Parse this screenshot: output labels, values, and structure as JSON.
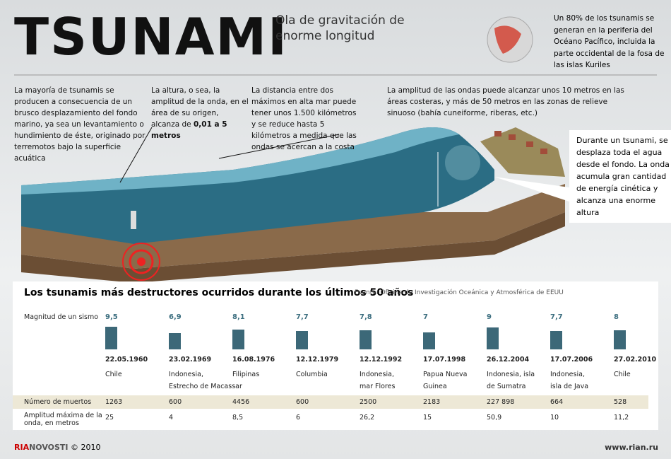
{
  "header": {
    "title": "TSUNAMI",
    "subtitle": "Ola de gravitación de enorme longitud",
    "fact": "Un 80% de los tsunamis se generan en la periferia del Océano Pacífico, incluida la parte occidental de la fosa de las islas Kuriles"
  },
  "notes": {
    "origin": "La mayoría de tsunamis se producen a consecuencia de un brusco desplazamiento del fondo marino, ya sea un levantamiento o hundimiento de éste, originado por terremotos bajo la superficie acuática",
    "height": {
      "text": "La altura, o sea, la amplitud de la onda, en el área de su origen, alcanza de",
      "bold": "0,01 a 5 metros"
    },
    "distance": "La distancia entre dos máximos en alta mar puede tener unos 1.500 kilómetros y se reduce hasta 5 kilómetros a medida que las ondas se acercan a la costa",
    "amplitude": "La amplitud de las ondas puede alcanzar unos 10 metros en las áreas costeras, y más de 50 metros en las zonas de relieve sinuoso (bahía cuneiforme, riberas, etc.)",
    "coast": "Durante un tsunami, se desplaza toda el agua desde el fondo. La onda acumula gran cantidad de energía cinética y alcanza una enorme altura"
  },
  "table": {
    "title": "Los tsunamis más destructores ocurridos durante los últimos 50 años",
    "source": "Fuente: Oficina de Investigación Oceánica y Atmosférica de EEUU",
    "row_labels": {
      "magnitude": "Magnitud de un sismo",
      "deaths": "Número de muertos",
      "amplitude": "Amplitud máxima de la onda, en metros"
    },
    "events": [
      {
        "magnitude": {
          "value": 9.5,
          "label": "9,5"
        },
        "date": "22.05.1960",
        "place": [
          "Chile"
        ],
        "deaths": "1263",
        "amplitude": "25"
      },
      {
        "magnitude": {
          "value": 6.9,
          "label": "6,9"
        },
        "date": "23.02.1969",
        "place": [
          "Indonesia,",
          "Estrecho de Macassar"
        ],
        "deaths": "600",
        "amplitude": "4"
      },
      {
        "magnitude": {
          "value": 8.1,
          "label": "8,1"
        },
        "date": "16.08.1976",
        "place": [
          "Filipinas"
        ],
        "deaths": "4456",
        "amplitude": "8,5"
      },
      {
        "magnitude": {
          "value": 7.7,
          "label": "7,7"
        },
        "date": "12.12.1979",
        "place": [
          "Columbia"
        ],
        "deaths": "600",
        "amplitude": "6"
      },
      {
        "magnitude": {
          "value": 7.8,
          "label": "7,8"
        },
        "date": "12.12.1992",
        "place": [
          "Indonesia,",
          "mar Flores"
        ],
        "deaths": "2500",
        "amplitude": "26,2"
      },
      {
        "magnitude": 7,
        "date": "17.07.1998",
        "place": [
          "Papua Nueva",
          "Guinea"
        ],
        "deaths": "2183",
        "amplitude": "15"
      },
      {
        "magnitude": 9,
        "date": "26.12.2004",
        "place": [
          "Indonesia, isla",
          "de Sumatra"
        ],
        "deaths": "227 898",
        "amplitude": "50,9"
      },
      {
        "magnitude": {
          "value": 7.7,
          "label": "7,7"
        },
        "date": "17.07.2006",
        "place": [
          "Indonesia,",
          "isla de Java"
        ],
        "deaths": "664",
        "amplitude": "10"
      },
      {
        "magnitude": 8,
        "date": "27.02.2010",
        "place": [
          "Chile"
        ],
        "deaths": "528",
        "amplitude": "11,2"
      }
    ]
  },
  "footer": {
    "logo_ria": "RIA",
    "logo_novosti": "NOVOSTI",
    "copyright": "© 2010",
    "url": "www.rian.ru"
  }
}
